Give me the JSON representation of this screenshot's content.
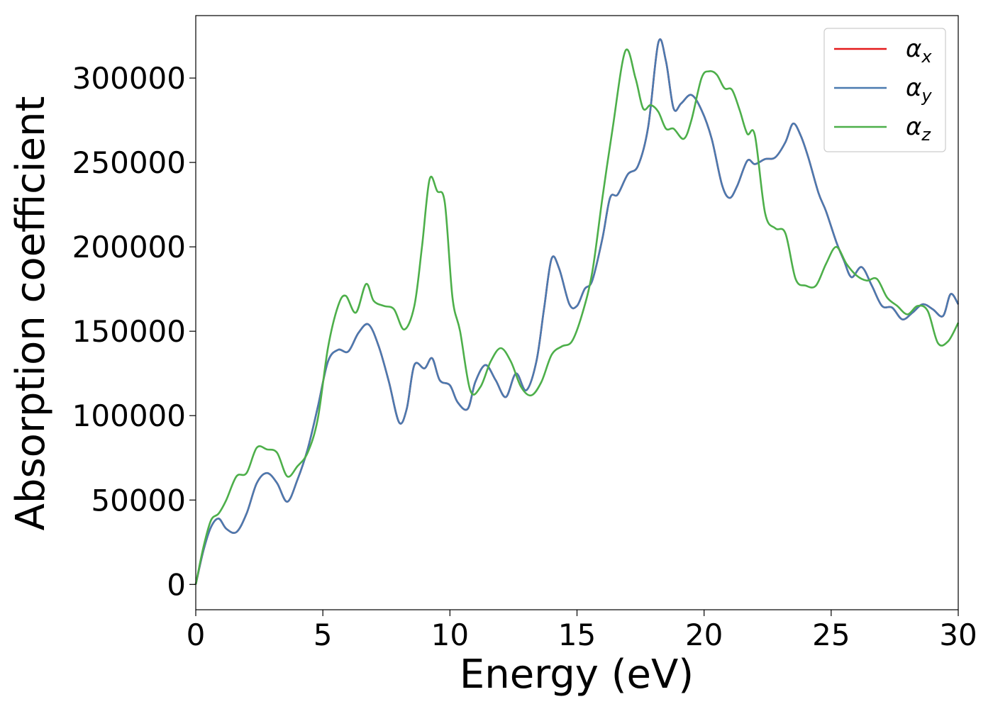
{
  "chart_data": {
    "type": "line",
    "xlabel": "Energy (eV)",
    "ylabel": "Absorption coefficient",
    "xlim": [
      0,
      30
    ],
    "ylim": [
      -15000,
      337000
    ],
    "x_ticks": [
      0,
      5,
      10,
      15,
      20,
      25,
      30
    ],
    "x_tick_labels": [
      "0",
      "5",
      "10",
      "15",
      "20",
      "25",
      "30"
    ],
    "y_ticks": [
      0,
      50000,
      100000,
      150000,
      200000,
      250000,
      300000
    ],
    "y_tick_labels": [
      "0",
      "50000",
      "100000",
      "150000",
      "200000",
      "250000",
      "300000"
    ],
    "grid": false,
    "legend": "top-right",
    "series": [
      {
        "name": "α",
        "subscript": "x",
        "color": "#e41a1c",
        "x": [
          0,
          0.3,
          0.6,
          0.9,
          1.2,
          1.6,
          2.0,
          2.4,
          2.8,
          3.2,
          3.6,
          4.0,
          4.4,
          4.8,
          5.2,
          5.6,
          6.0,
          6.4,
          6.8,
          7.2,
          7.6,
          8.0,
          8.3,
          8.6,
          9.0,
          9.3,
          9.6,
          10.0,
          10.3,
          10.7,
          11.0,
          11.4,
          11.8,
          12.2,
          12.6,
          13.0,
          13.4,
          13.7,
          14.0,
          14.3,
          14.7,
          15.0,
          15.3,
          15.6,
          16.0,
          16.3,
          16.6,
          17.0,
          17.4,
          17.8,
          18.2,
          18.5,
          18.8,
          19.1,
          19.5,
          19.9,
          20.3,
          20.7,
          21.0,
          21.3,
          21.7,
          22.0,
          22.4,
          22.8,
          23.2,
          23.5,
          23.8,
          24.1,
          24.5,
          24.8,
          25.2,
          25.5,
          25.8,
          26.2,
          26.6,
          27.0,
          27.4,
          27.8,
          28.2,
          28.6,
          29.0,
          29.4,
          29.7,
          30.0
        ],
        "y": [
          0,
          20000,
          34000,
          39000,
          33000,
          31000,
          42000,
          60000,
          66000,
          60000,
          49000,
          62000,
          80000,
          105000,
          132000,
          139000,
          138000,
          149000,
          154000,
          141000,
          120000,
          96000,
          104000,
          130000,
          128000,
          134000,
          121000,
          118000,
          108000,
          104000,
          120000,
          130000,
          121000,
          111000,
          125000,
          115000,
          132000,
          163000,
          193000,
          187000,
          166000,
          165000,
          175000,
          180000,
          205000,
          229000,
          231000,
          243000,
          248000,
          271000,
          321000,
          310000,
          282000,
          285000,
          290000,
          281000,
          264000,
          237000,
          229000,
          236000,
          251000,
          249000,
          252000,
          253000,
          262000,
          273000,
          266000,
          253000,
          232000,
          221000,
          203000,
          192000,
          182000,
          188000,
          177000,
          165000,
          164000,
          157000,
          161000,
          166000,
          163000,
          159000,
          172000,
          166000
        ]
      },
      {
        "name": "α",
        "subscript": "y",
        "color": "#4a7ab0",
        "x": [
          0,
          0.3,
          0.6,
          0.9,
          1.2,
          1.6,
          2.0,
          2.4,
          2.8,
          3.2,
          3.6,
          4.0,
          4.4,
          4.8,
          5.2,
          5.6,
          6.0,
          6.4,
          6.8,
          7.2,
          7.6,
          8.0,
          8.3,
          8.6,
          9.0,
          9.3,
          9.6,
          10.0,
          10.3,
          10.7,
          11.0,
          11.4,
          11.8,
          12.2,
          12.6,
          13.0,
          13.4,
          13.7,
          14.0,
          14.3,
          14.7,
          15.0,
          15.3,
          15.6,
          16.0,
          16.3,
          16.6,
          17.0,
          17.4,
          17.8,
          18.2,
          18.5,
          18.8,
          19.1,
          19.5,
          19.9,
          20.3,
          20.7,
          21.0,
          21.3,
          21.7,
          22.0,
          22.4,
          22.8,
          23.2,
          23.5,
          23.8,
          24.1,
          24.5,
          24.8,
          25.2,
          25.5,
          25.8,
          26.2,
          26.6,
          27.0,
          27.4,
          27.8,
          28.2,
          28.6,
          29.0,
          29.4,
          29.7,
          30.0
        ],
        "y": [
          0,
          20000,
          34000,
          39000,
          33000,
          31000,
          42000,
          60000,
          66000,
          60000,
          49000,
          62000,
          80000,
          105000,
          132000,
          139000,
          138000,
          149000,
          154000,
          141000,
          120000,
          96000,
          104000,
          130000,
          128000,
          134000,
          121000,
          118000,
          108000,
          104000,
          120000,
          130000,
          121000,
          111000,
          125000,
          115000,
          132000,
          163000,
          193000,
          187000,
          166000,
          165000,
          175000,
          180000,
          205000,
          229000,
          231000,
          243000,
          248000,
          271000,
          321000,
          310000,
          282000,
          285000,
          290000,
          281000,
          264000,
          237000,
          229000,
          236000,
          251000,
          249000,
          252000,
          253000,
          262000,
          273000,
          266000,
          253000,
          232000,
          221000,
          203000,
          192000,
          182000,
          188000,
          177000,
          165000,
          164000,
          157000,
          161000,
          166000,
          163000,
          159000,
          172000,
          166000
        ]
      },
      {
        "name": "α",
        "subscript": "z",
        "color": "#4daf4a",
        "x": [
          0,
          0.3,
          0.6,
          0.9,
          1.2,
          1.6,
          2.0,
          2.4,
          2.8,
          3.2,
          3.6,
          4.0,
          4.4,
          4.8,
          5.2,
          5.6,
          5.9,
          6.3,
          6.7,
          7.0,
          7.4,
          7.8,
          8.2,
          8.6,
          8.9,
          9.2,
          9.5,
          9.8,
          10.1,
          10.4,
          10.8,
          11.2,
          11.6,
          12.0,
          12.4,
          12.8,
          13.2,
          13.6,
          14.0,
          14.4,
          14.8,
          15.2,
          15.6,
          16.0,
          16.4,
          16.9,
          17.3,
          17.6,
          17.9,
          18.2,
          18.5,
          18.8,
          19.2,
          19.5,
          19.9,
          20.2,
          20.5,
          20.8,
          21.1,
          21.4,
          21.7,
          22.0,
          22.4,
          22.8,
          23.2,
          23.6,
          24.0,
          24.4,
          24.8,
          25.2,
          25.6,
          26.0,
          26.4,
          26.8,
          27.2,
          27.6,
          28.0,
          28.4,
          28.8,
          29.2,
          29.6,
          30.0
        ],
        "y": [
          0,
          22000,
          38000,
          42000,
          50000,
          64000,
          66000,
          81000,
          80000,
          78000,
          64000,
          70000,
          78000,
          98000,
          140000,
          165000,
          171000,
          161000,
          178000,
          168000,
          165000,
          163000,
          151000,
          165000,
          200000,
          240000,
          233000,
          226000,
          170000,
          150000,
          115000,
          117000,
          132000,
          140000,
          132000,
          117000,
          112000,
          120000,
          136000,
          141000,
          144000,
          160000,
          185000,
          229000,
          270000,
          316000,
          300000,
          282000,
          284000,
          280000,
          270000,
          270000,
          264000,
          275000,
          300000,
          304000,
          302000,
          294000,
          293000,
          281000,
          267000,
          266000,
          220000,
          211000,
          208000,
          181000,
          177000,
          177000,
          190000,
          200000,
          190000,
          183000,
          180000,
          181000,
          170000,
          165000,
          160000,
          165000,
          162000,
          143000,
          144000,
          155000
        ]
      }
    ]
  }
}
